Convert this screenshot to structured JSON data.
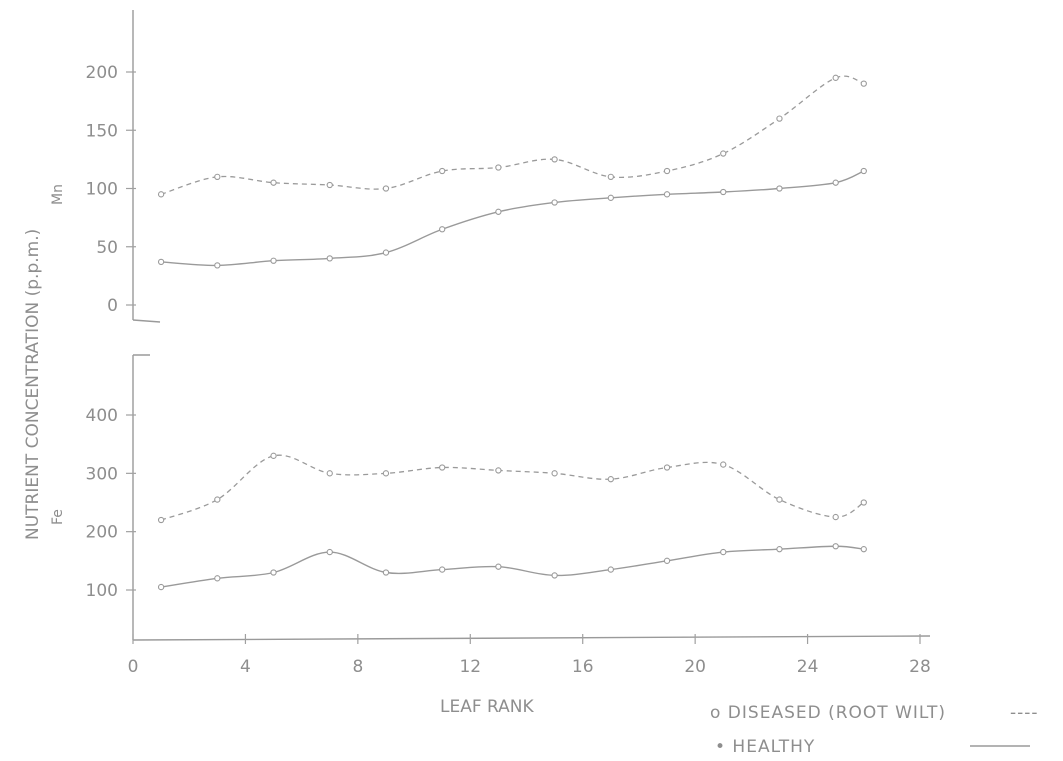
{
  "chart_data": [
    {
      "type": "line",
      "title": "",
      "ylabel_tag": "Mn",
      "xlabel": "",
      "ylim": [
        -20,
        220
      ],
      "yticks": [
        "0",
        "50",
        "100",
        "150",
        "200"
      ],
      "x": [
        1,
        3,
        5,
        7,
        9,
        11,
        13,
        15,
        17,
        19,
        21,
        23,
        25,
        26
      ],
      "series": [
        {
          "name": "DISEASED (ROOT WILT)",
          "style": "dashed",
          "values": [
            95,
            110,
            105,
            103,
            100,
            115,
            118,
            125,
            110,
            115,
            130,
            160,
            195,
            190
          ]
        },
        {
          "name": "HEALTHY",
          "style": "solid",
          "values": [
            37,
            34,
            38,
            40,
            45,
            65,
            80,
            88,
            92,
            95,
            97,
            100,
            105,
            115
          ]
        }
      ]
    },
    {
      "type": "line",
      "title": "",
      "ylabel_tag": "Fe",
      "xlabel": "LEAF RANK",
      "ylim": [
        20,
        450
      ],
      "yticks": [
        "100",
        "200",
        "300",
        "400"
      ],
      "xticks": [
        "0",
        "4",
        "8",
        "12",
        "16",
        "20",
        "24",
        "28"
      ],
      "x": [
        1,
        3,
        5,
        7,
        9,
        11,
        13,
        15,
        17,
        19,
        21,
        23,
        25,
        26
      ],
      "series": [
        {
          "name": "DISEASED (ROOT WILT)",
          "style": "dashed",
          "values": [
            220,
            255,
            330,
            300,
            300,
            310,
            305,
            300,
            290,
            310,
            315,
            255,
            225,
            250
          ]
        },
        {
          "name": "HEALTHY",
          "style": "solid",
          "values": [
            105,
            120,
            130,
            165,
            130,
            135,
            140,
            125,
            135,
            150,
            165,
            170,
            175,
            170
          ]
        }
      ]
    }
  ],
  "ylabel_shared": "NUTRIENT CONCENTRATION (p.p.m.)",
  "legend": {
    "diseased_label": "o DISEASED (ROOT WILT)",
    "diseased_mark": "----",
    "healthy_label": "• HEALTHY"
  }
}
